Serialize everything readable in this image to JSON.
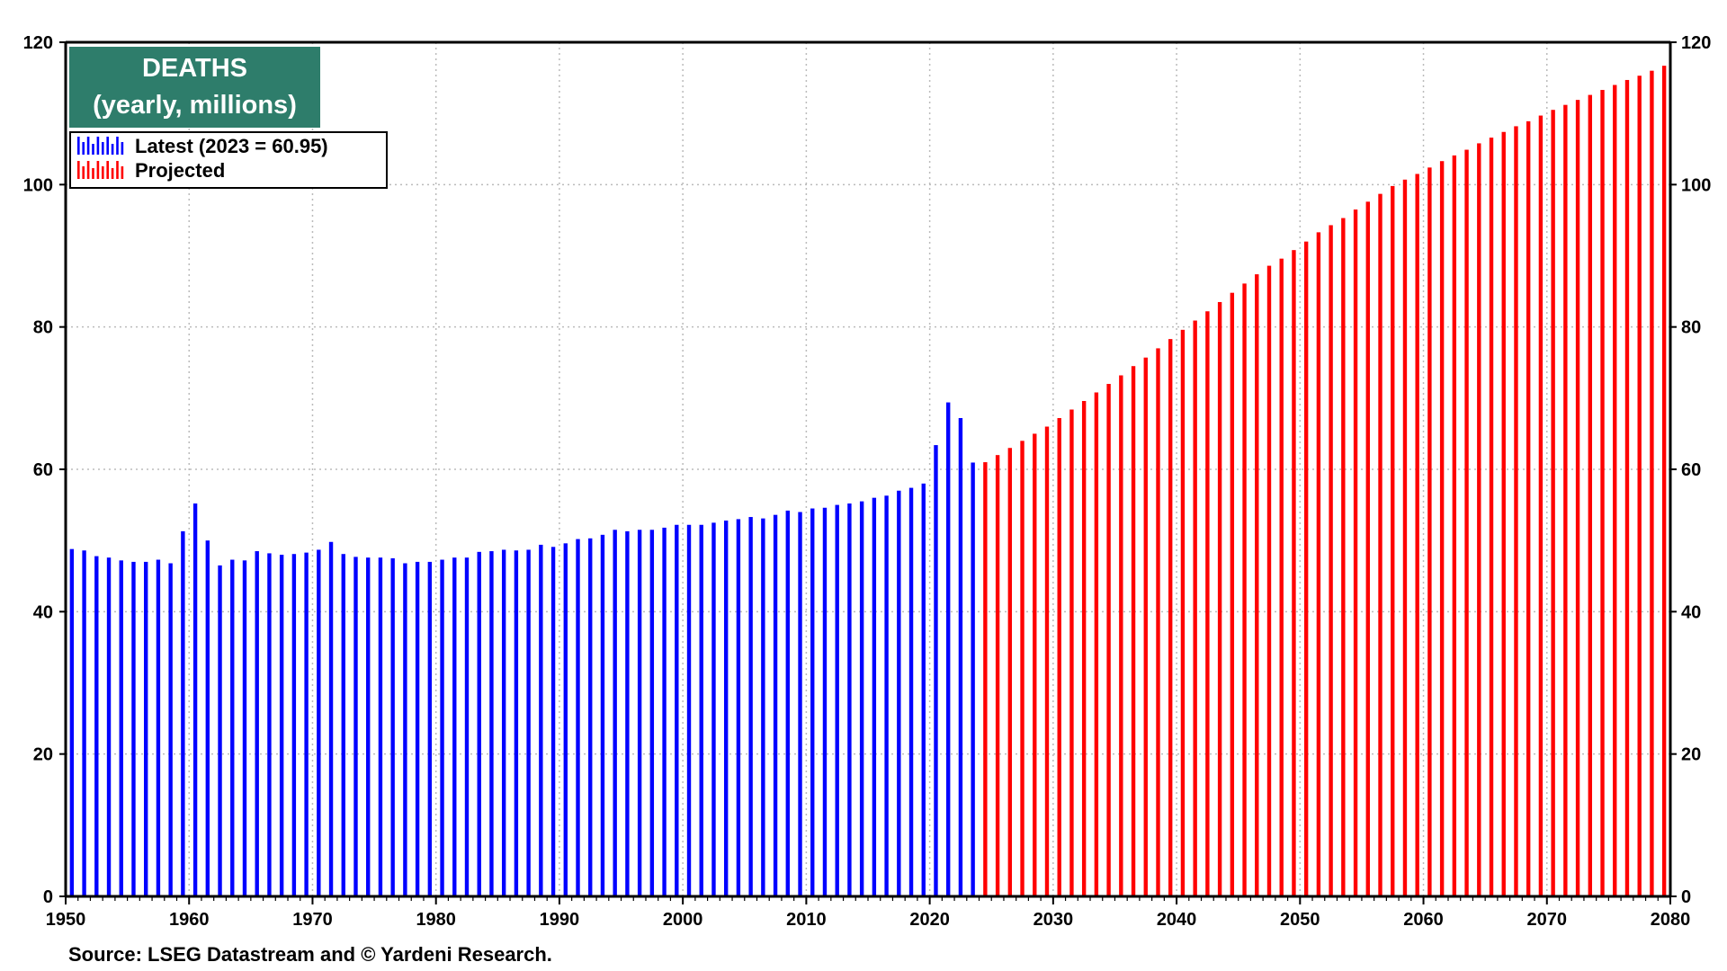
{
  "chart_data": {
    "type": "bar",
    "title": "DEATHS",
    "subtitle": "(yearly, millions)",
    "xlim": [
      1950,
      2080
    ],
    "ylim": [
      0,
      120
    ],
    "x_ticks": [
      1950,
      1960,
      1970,
      1980,
      1990,
      2000,
      2010,
      2020,
      2030,
      2040,
      2050,
      2060,
      2070,
      2080
    ],
    "y_ticks": [
      0,
      20,
      40,
      60,
      80,
      100,
      120
    ],
    "grid": true,
    "legend_position": "top-left",
    "source": "Source: LSEG Datastream and © Yardeni Research.",
    "series": [
      {
        "name": "Latest (2023 = 60.95)",
        "color": "#0000ff",
        "x": [
          1950,
          1951,
          1952,
          1953,
          1954,
          1955,
          1956,
          1957,
          1958,
          1959,
          1960,
          1961,
          1962,
          1963,
          1964,
          1965,
          1966,
          1967,
          1968,
          1969,
          1970,
          1971,
          1972,
          1973,
          1974,
          1975,
          1976,
          1977,
          1978,
          1979,
          1980,
          1981,
          1982,
          1983,
          1984,
          1985,
          1986,
          1987,
          1988,
          1989,
          1990,
          1991,
          1992,
          1993,
          1994,
          1995,
          1996,
          1997,
          1998,
          1999,
          2000,
          2001,
          2002,
          2003,
          2004,
          2005,
          2006,
          2007,
          2008,
          2009,
          2010,
          2011,
          2012,
          2013,
          2014,
          2015,
          2016,
          2017,
          2018,
          2019,
          2020,
          2021,
          2022,
          2023
        ],
        "values": [
          48.8,
          48.6,
          47.8,
          47.6,
          47.2,
          47.0,
          47.0,
          47.3,
          46.8,
          51.3,
          55.2,
          50.0,
          46.5,
          47.3,
          47.2,
          48.5,
          48.2,
          48.0,
          48.1,
          48.3,
          48.7,
          49.8,
          48.1,
          47.7,
          47.6,
          47.6,
          47.5,
          46.8,
          47.0,
          47.0,
          47.3,
          47.6,
          47.6,
          48.4,
          48.5,
          48.7,
          48.6,
          48.7,
          49.4,
          49.1,
          49.6,
          50.2,
          50.3,
          50.8,
          51.5,
          51.3,
          51.5,
          51.5,
          51.8,
          52.2,
          52.2,
          52.2,
          52.5,
          52.8,
          53.0,
          53.3,
          53.1,
          53.6,
          54.2,
          54.0,
          54.5,
          54.6,
          55.0,
          55.2,
          55.5,
          56.0,
          56.3,
          57.0,
          57.4,
          58.0,
          63.4,
          69.4,
          67.2,
          60.95
        ]
      },
      {
        "name": "Projected",
        "color": "#ff0000",
        "x": [
          2024,
          2025,
          2026,
          2027,
          2028,
          2029,
          2030,
          2031,
          2032,
          2033,
          2034,
          2035,
          2036,
          2037,
          2038,
          2039,
          2040,
          2041,
          2042,
          2043,
          2044,
          2045,
          2046,
          2047,
          2048,
          2049,
          2050,
          2051,
          2052,
          2053,
          2054,
          2055,
          2056,
          2057,
          2058,
          2059,
          2060,
          2061,
          2062,
          2063,
          2064,
          2065,
          2066,
          2067,
          2068,
          2069,
          2070,
          2071,
          2072,
          2073,
          2074,
          2075,
          2076,
          2077,
          2078,
          2079
        ],
        "values": [
          61.0,
          62.0,
          63.0,
          64.0,
          65.0,
          66.0,
          67.2,
          68.4,
          69.6,
          70.8,
          72.0,
          73.2,
          74.5,
          75.7,
          77.0,
          78.3,
          79.6,
          80.9,
          82.2,
          83.5,
          84.8,
          86.1,
          87.4,
          88.6,
          89.6,
          90.8,
          92.0,
          93.3,
          94.3,
          95.3,
          96.5,
          97.6,
          98.7,
          99.8,
          100.7,
          101.5,
          102.4,
          103.3,
          104.1,
          104.9,
          105.8,
          106.6,
          107.4,
          108.2,
          108.9,
          109.7,
          110.5,
          111.2,
          111.9,
          112.6,
          113.3,
          114.0,
          114.7,
          115.3,
          116.0,
          116.7
        ]
      }
    ]
  }
}
